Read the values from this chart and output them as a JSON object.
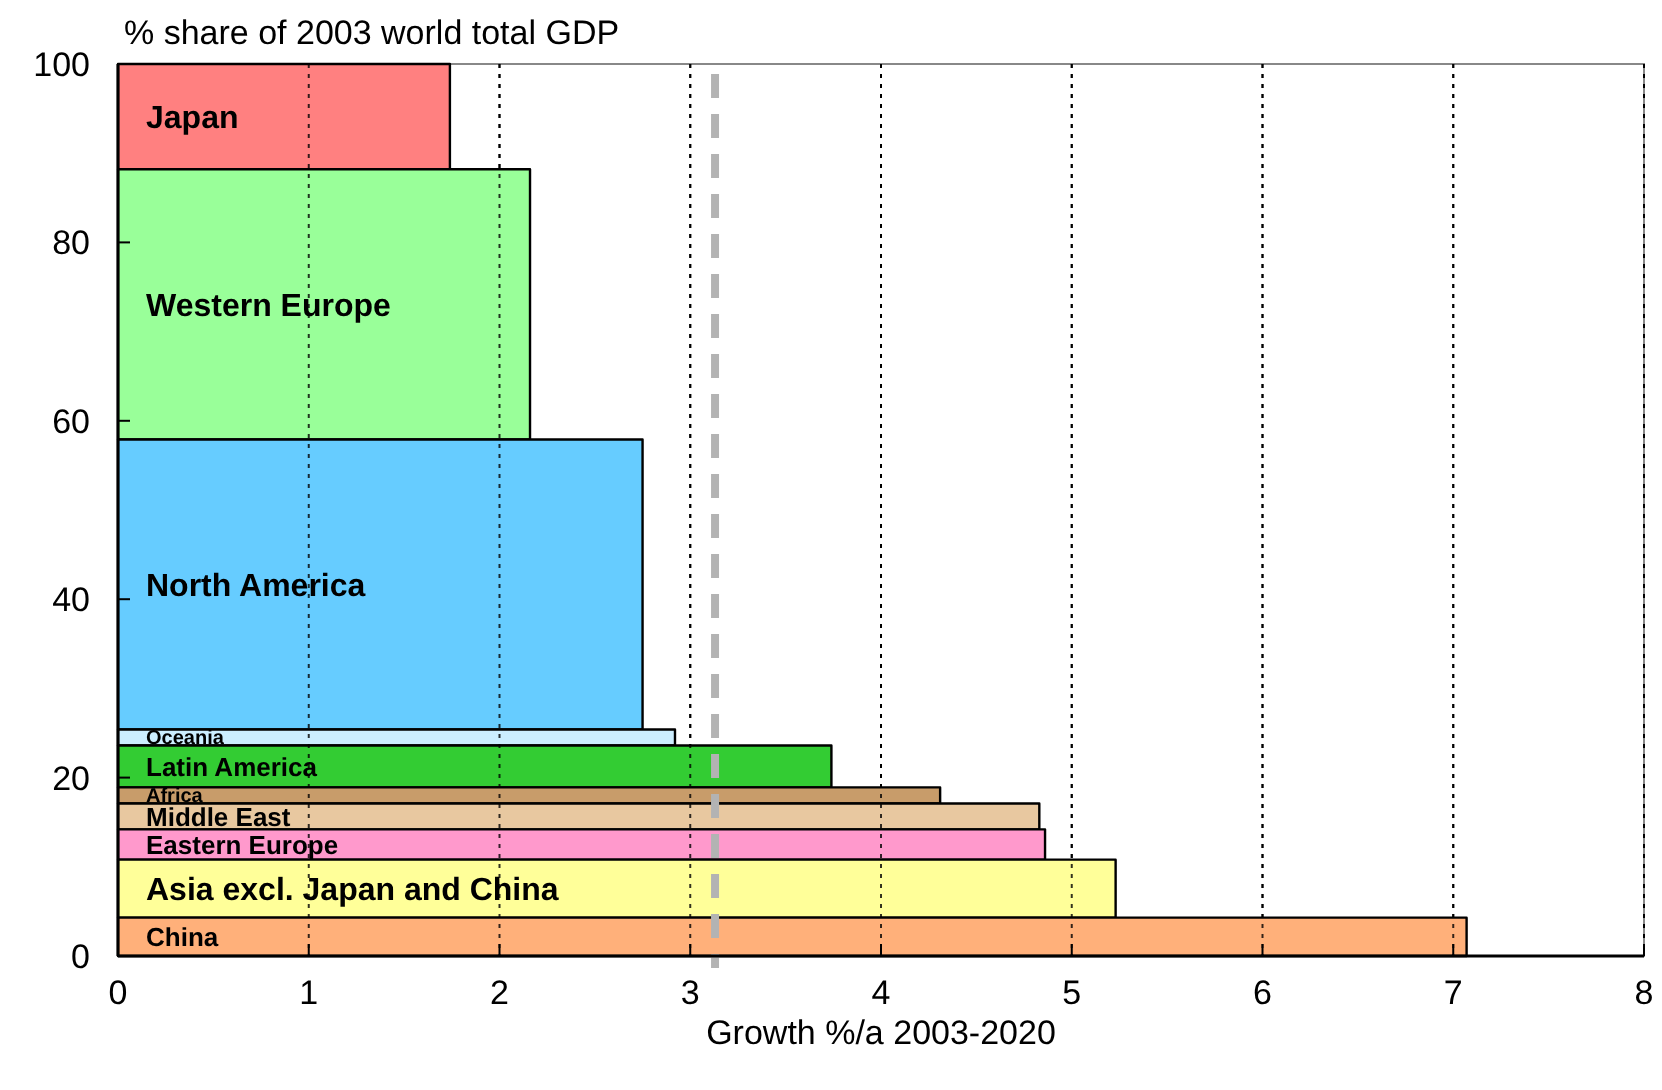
{
  "chart_data": {
    "type": "area",
    "orientation": "horizontal",
    "xlabel": "Growth %/a 2003-2020",
    "ylabel": "% share of 2003 world total GDP",
    "series": [
      {
        "name": "Japan",
        "color": "#ff8080",
        "x": [
          88.2,
          100
        ],
        "values": [
          1.74,
          1.74
        ]
      },
      {
        "name": "Western Europe",
        "color": "#99ff99",
        "x": [
          57.9,
          88.2
        ],
        "values": [
          2.16,
          2.16
        ]
      },
      {
        "name": "North America",
        "color": "#66ccff",
        "x": [
          25.4,
          57.9
        ],
        "values": [
          2.75,
          2.75
        ]
      },
      {
        "name": "Oceania",
        "color": "#cceeff",
        "x": [
          23.6,
          25.4
        ],
        "values": [
          2.92,
          2.92
        ]
      },
      {
        "name": "Latin America",
        "color": "#33cc33",
        "x": [
          18.9,
          23.6
        ],
        "values": [
          3.74,
          3.74
        ]
      },
      {
        "name": "Africa",
        "color": "#c89c6a",
        "x": [
          17.1,
          18.9
        ],
        "values": [
          4.31,
          4.31
        ]
      },
      {
        "name": "Middle East",
        "color": "#e8c8a0",
        "x": [
          14.2,
          17.1
        ],
        "values": [
          4.83,
          4.83
        ]
      },
      {
        "name": "Eastern Europe",
        "color": "#ff99cc",
        "x": [
          10.8,
          14.2
        ],
        "values": [
          4.86,
          4.86
        ]
      },
      {
        "name": "Asia excl. Japan and China",
        "color": "#ffff99",
        "x": [
          4.3,
          10.8
        ],
        "values": [
          5.23,
          5.23
        ]
      },
      {
        "name": "China",
        "color": "#ffb07a",
        "x": [
          0,
          4.3
        ],
        "values": [
          7.07,
          7.07
        ]
      }
    ],
    "xlim": [
      0,
      8
    ],
    "xticks": [
      0,
      1,
      2,
      3,
      4,
      5,
      6,
      7,
      8
    ],
    "ylim": [
      0,
      100
    ],
    "yticks": [
      0,
      20,
      40,
      60,
      80,
      100
    ],
    "grid": "x",
    "ref_lines": [
      {
        "axis": "x",
        "value": 3.13,
        "color": "#b3b3b3",
        "line_style": "dashed"
      }
    ]
  }
}
